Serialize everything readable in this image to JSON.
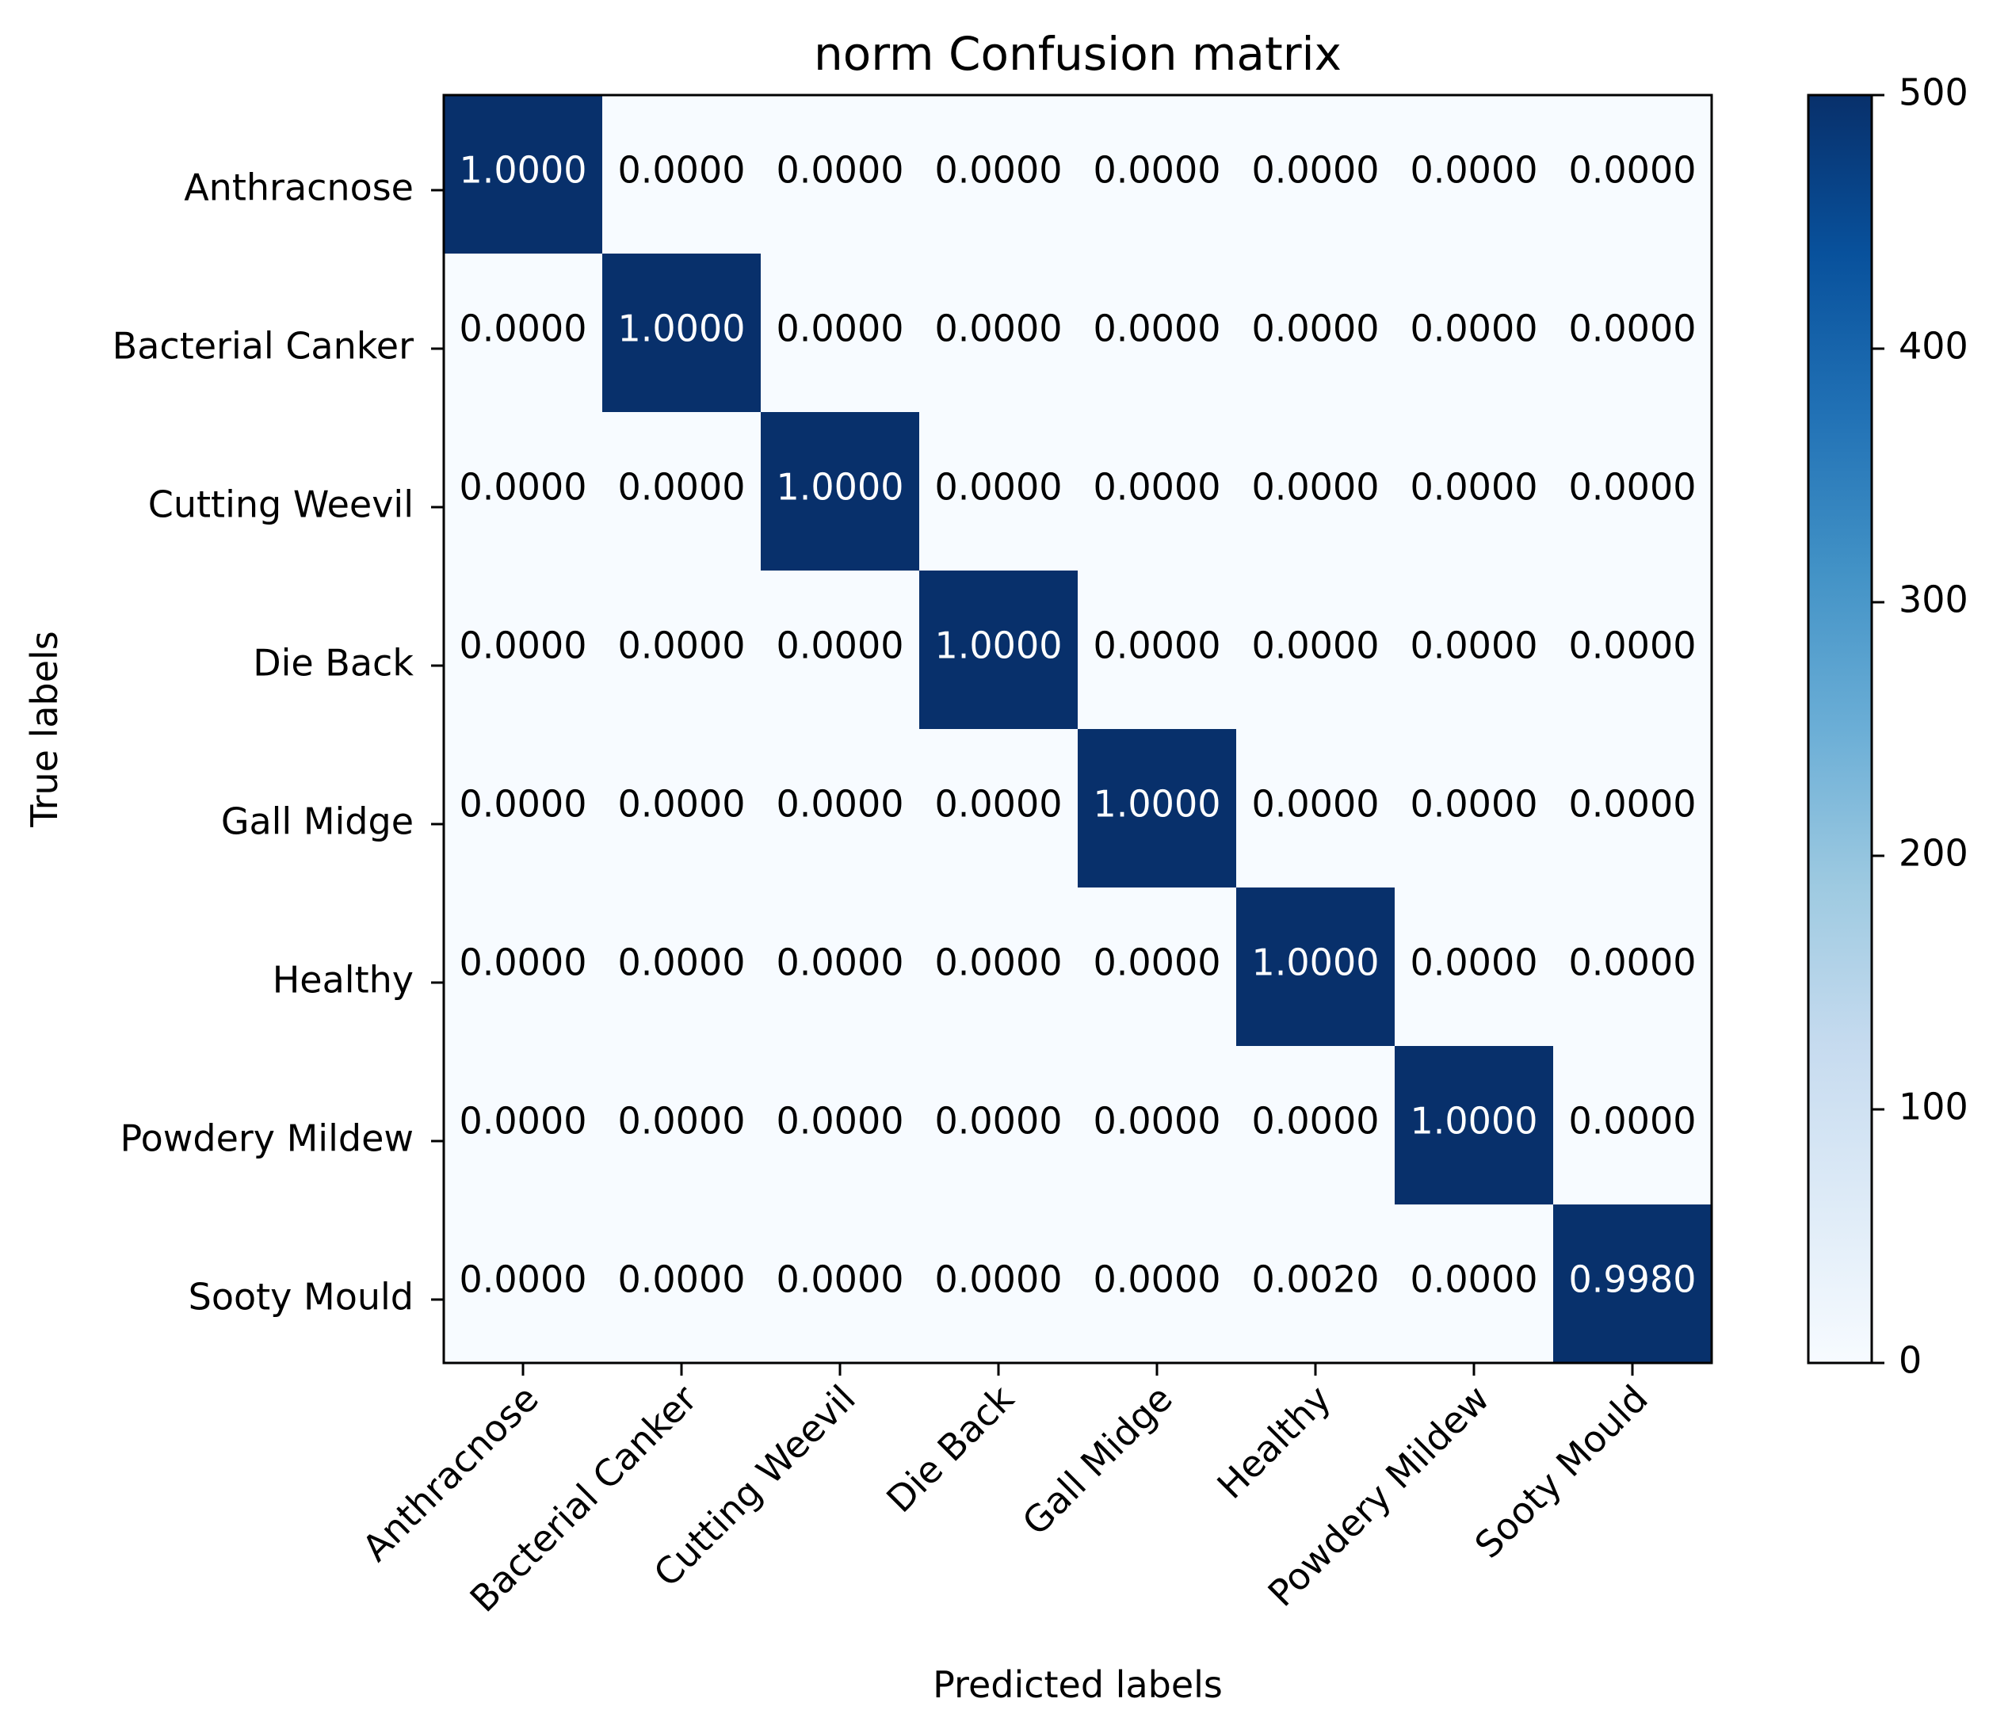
{
  "chart_data": {
    "type": "heatmap",
    "title": "norm Confusion matrix",
    "xlabel": "Predicted labels",
    "ylabel": "True labels",
    "x_categories": [
      "Anthracnose",
      "Bacterial Canker",
      "Cutting Weevil",
      "Die Back",
      "Gall Midge",
      "Healthy",
      "Powdery Mildew",
      "Sooty Mould"
    ],
    "y_categories": [
      "Anthracnose",
      "Bacterial Canker",
      "Cutting Weevil",
      "Die Back",
      "Gall Midge",
      "Healthy",
      "Powdery Mildew",
      "Sooty Mould"
    ],
    "values": [
      [
        "1.0000",
        "0.0000",
        "0.0000",
        "0.0000",
        "0.0000",
        "0.0000",
        "0.0000",
        "0.0000"
      ],
      [
        "0.0000",
        "1.0000",
        "0.0000",
        "0.0000",
        "0.0000",
        "0.0000",
        "0.0000",
        "0.0000"
      ],
      [
        "0.0000",
        "0.0000",
        "1.0000",
        "0.0000",
        "0.0000",
        "0.0000",
        "0.0000",
        "0.0000"
      ],
      [
        "0.0000",
        "0.0000",
        "0.0000",
        "1.0000",
        "0.0000",
        "0.0000",
        "0.0000",
        "0.0000"
      ],
      [
        "0.0000",
        "0.0000",
        "0.0000",
        "0.0000",
        "1.0000",
        "0.0000",
        "0.0000",
        "0.0000"
      ],
      [
        "0.0000",
        "0.0000",
        "0.0000",
        "0.0000",
        "0.0000",
        "1.0000",
        "0.0000",
        "0.0000"
      ],
      [
        "0.0000",
        "0.0000",
        "0.0000",
        "0.0000",
        "0.0000",
        "0.0000",
        "1.0000",
        "0.0000"
      ],
      [
        "0.0000",
        "0.0000",
        "0.0000",
        "0.0000",
        "0.0000",
        "0.0020",
        "0.0000",
        "0.9980"
      ]
    ],
    "colorbar": {
      "range": [
        0,
        500
      ],
      "ticks": [
        "0",
        "100",
        "200",
        "300",
        "400",
        "500"
      ],
      "colormap": "Blues"
    },
    "colors": {
      "low": "#f7fbff",
      "high": "#08306b",
      "text_dark": "#000000",
      "text_light": "#ffffff"
    },
    "grid": false
  }
}
